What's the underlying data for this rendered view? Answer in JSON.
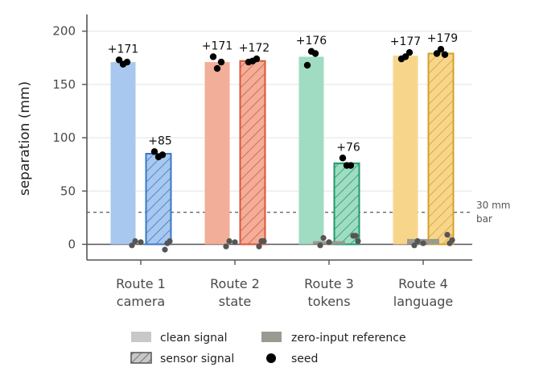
{
  "chart_data": {
    "type": "bar",
    "ylabel": "separation (mm)",
    "xlabel": "",
    "ylim": [
      -15,
      215
    ],
    "yticks": [
      0,
      50,
      100,
      150,
      200
    ],
    "grid": "horizontal",
    "categories": [
      {
        "line1": "Route 1",
        "line2": "camera"
      },
      {
        "line1": "Route 2",
        "line2": "state"
      },
      {
        "line1": "Route 3",
        "line2": "tokens"
      },
      {
        "line1": "Route 4",
        "line2": "language"
      }
    ],
    "colors": {
      "fill": [
        "#a8c8ef",
        "#f2ae98",
        "#9fdcc1",
        "#f7d68c"
      ],
      "edge": [
        "#3a78c8",
        "#d9573a",
        "#1f9a6c",
        "#d4a12a"
      ],
      "zero_bar": "#9a9a92",
      "seed": "#000000",
      "null_seed": "#555555"
    },
    "series": [
      {
        "name": "clean signal",
        "values": [
          171,
          171,
          176,
          177
        ],
        "labels": [
          "+171",
          "+171",
          "+176",
          "+177"
        ]
      },
      {
        "name": "sensor signal",
        "values": [
          85,
          172,
          76,
          179
        ],
        "labels": [
          "+85",
          "+172",
          "+76",
          "+179"
        ]
      }
    ],
    "seeds": {
      "clean": [
        [
          173,
          169,
          171
        ],
        [
          176,
          165,
          171
        ],
        [
          168,
          181,
          179
        ],
        [
          174,
          176,
          180
        ]
      ],
      "sensor": [
        [
          87,
          82,
          84
        ],
        [
          171,
          172,
          174
        ],
        [
          81,
          74,
          74
        ],
        [
          179,
          183,
          178
        ]
      ]
    },
    "zero_reference": {
      "bar_values": [
        0,
        0,
        3,
        5
      ],
      "clean_seeds": [
        [
          -1,
          3,
          2
        ],
        [
          -2,
          3,
          2
        ],
        [
          -1,
          6,
          2
        ],
        [
          -1,
          3,
          1
        ]
      ],
      "sensor_seeds": [
        [
          -5,
          1,
          3
        ],
        [
          -2,
          3,
          3
        ],
        [
          8,
          8,
          3
        ],
        [
          9,
          1,
          4
        ]
      ]
    },
    "reference_line": {
      "value": 30,
      "label_line1": "30 mm",
      "label_line2": "bar"
    },
    "legend": {
      "position": "bottom",
      "items": [
        "clean signal",
        "sensor signal",
        "zero-input reference",
        "seed"
      ]
    }
  }
}
